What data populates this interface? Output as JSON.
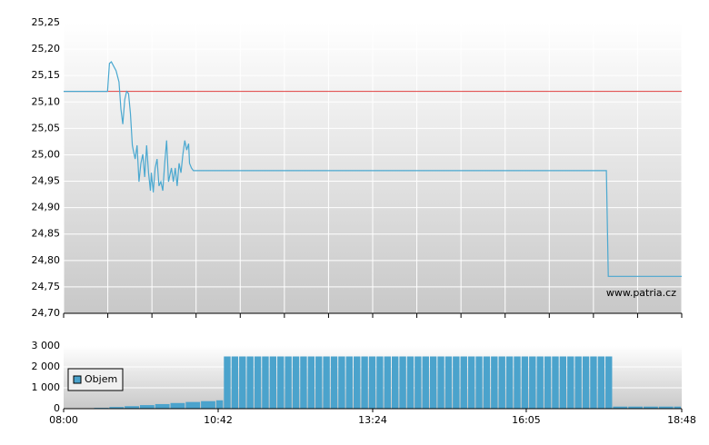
{
  "chart_data": [
    {
      "type": "line",
      "xlim": [
        480,
        1128
      ],
      "xgrid": [
        480,
        526.29,
        572.57,
        618.86,
        665.14,
        711.43,
        757.71,
        804,
        850.29,
        896.57,
        942.86,
        989.14,
        1035.43,
        1081.71,
        1128
      ],
      "ylim": [
        24.7,
        25.25
      ],
      "yticks": [
        {
          "value": 24.7,
          "label": "24,70"
        },
        {
          "value": 24.75,
          "label": "24,75"
        },
        {
          "value": 24.8,
          "label": "24,80"
        },
        {
          "value": 24.85,
          "label": "24,85"
        },
        {
          "value": 24.9,
          "label": "24,90"
        },
        {
          "value": 24.95,
          "label": "24,95"
        },
        {
          "value": 25.0,
          "label": "25,00"
        },
        {
          "value": 25.05,
          "label": "25,05"
        },
        {
          "value": 25.1,
          "label": "25,10"
        },
        {
          "value": 25.15,
          "label": "25,15"
        },
        {
          "value": 25.2,
          "label": "25,20"
        },
        {
          "value": 25.25,
          "label": "25,25"
        }
      ],
      "grid": true,
      "reference_line": {
        "value": 25.12,
        "color": "#e04040"
      },
      "watermark": "www.patria.cz",
      "series": [
        {
          "color": "#4aa8d0",
          "x": [
            480,
            526,
            528,
            530,
            535,
            538,
            540,
            542,
            544,
            546,
            548,
            550,
            552,
            553,
            555,
            557,
            559,
            561,
            563,
            565,
            567,
            569,
            571,
            572,
            574,
            576,
            578,
            580,
            582,
            584,
            586,
            588,
            590,
            591,
            593,
            595,
            597,
            599,
            601,
            603,
            605,
            607,
            609,
            611,
            612,
            614,
            616,
            1049,
            1051,
            1128
          ],
          "values": [
            25.12,
            25.12,
            25.173,
            25.176,
            25.159,
            25.138,
            25.087,
            25.058,
            25.104,
            25.12,
            25.116,
            25.078,
            25.018,
            25.009,
            24.992,
            25.018,
            24.949,
            24.984,
            25.001,
            24.958,
            25.018,
            24.966,
            24.932,
            24.966,
            24.929,
            24.975,
            24.992,
            24.941,
            24.949,
            24.932,
            24.984,
            25.027,
            24.949,
            24.958,
            24.975,
            24.949,
            24.975,
            24.941,
            24.984,
            24.966,
            25.001,
            25.027,
            25.009,
            25.021,
            24.984,
            24.975,
            24.97,
            24.97,
            24.77,
            24.77
          ]
        }
      ]
    },
    {
      "type": "bar",
      "xlim": [
        480,
        1128
      ],
      "xticks": [
        {
          "value": 480,
          "label": "08:00"
        },
        {
          "value": 642,
          "label": "10:42"
        },
        {
          "value": 804,
          "label": "13:24"
        },
        {
          "value": 965,
          "label": "16:05"
        },
        {
          "value": 1128,
          "label": "18:48"
        }
      ],
      "ylim": [
        0,
        3000
      ],
      "yticks": [
        0,
        {
          "value": 1000,
          "label": "1 000"
        },
        {
          "value": 2000,
          "label": "2 000"
        },
        {
          "value": 3000,
          "label": "3 000"
        }
      ],
      "grid": true,
      "series": [
        {
          "name": "Objem",
          "color": "#4ba3cc",
          "x": [
            480,
            496,
            512,
            528,
            544,
            560,
            576,
            592,
            608,
            624,
            640,
            648,
            656,
            664,
            672,
            680,
            688,
            696,
            704,
            712,
            720,
            728,
            736,
            744,
            752,
            760,
            768,
            776,
            784,
            792,
            800,
            808,
            816,
            824,
            832,
            840,
            848,
            856,
            864,
            872,
            880,
            888,
            896,
            904,
            912,
            920,
            928,
            936,
            944,
            952,
            960,
            968,
            976,
            984,
            992,
            1000,
            1008,
            1016,
            1024,
            1032,
            1040,
            1048,
            1056,
            1072,
            1088,
            1104,
            1120
          ],
          "values": [
            10,
            20,
            40,
            80,
            120,
            170,
            220,
            270,
            320,
            360,
            400,
            2500,
            2500,
            2500,
            2500,
            2500,
            2500,
            2500,
            2500,
            2500,
            2500,
            2500,
            2500,
            2500,
            2500,
            2500,
            2500,
            2500,
            2500,
            2500,
            2500,
            2500,
            2500,
            2500,
            2500,
            2500,
            2500,
            2500,
            2500,
            2500,
            2500,
            2500,
            2500,
            2500,
            2500,
            2500,
            2500,
            2500,
            2500,
            2500,
            2500,
            2500,
            2500,
            2500,
            2500,
            2500,
            2500,
            2500,
            2500,
            2500,
            2500,
            2500,
            100,
            100,
            100,
            100,
            100
          ]
        }
      ]
    }
  ]
}
